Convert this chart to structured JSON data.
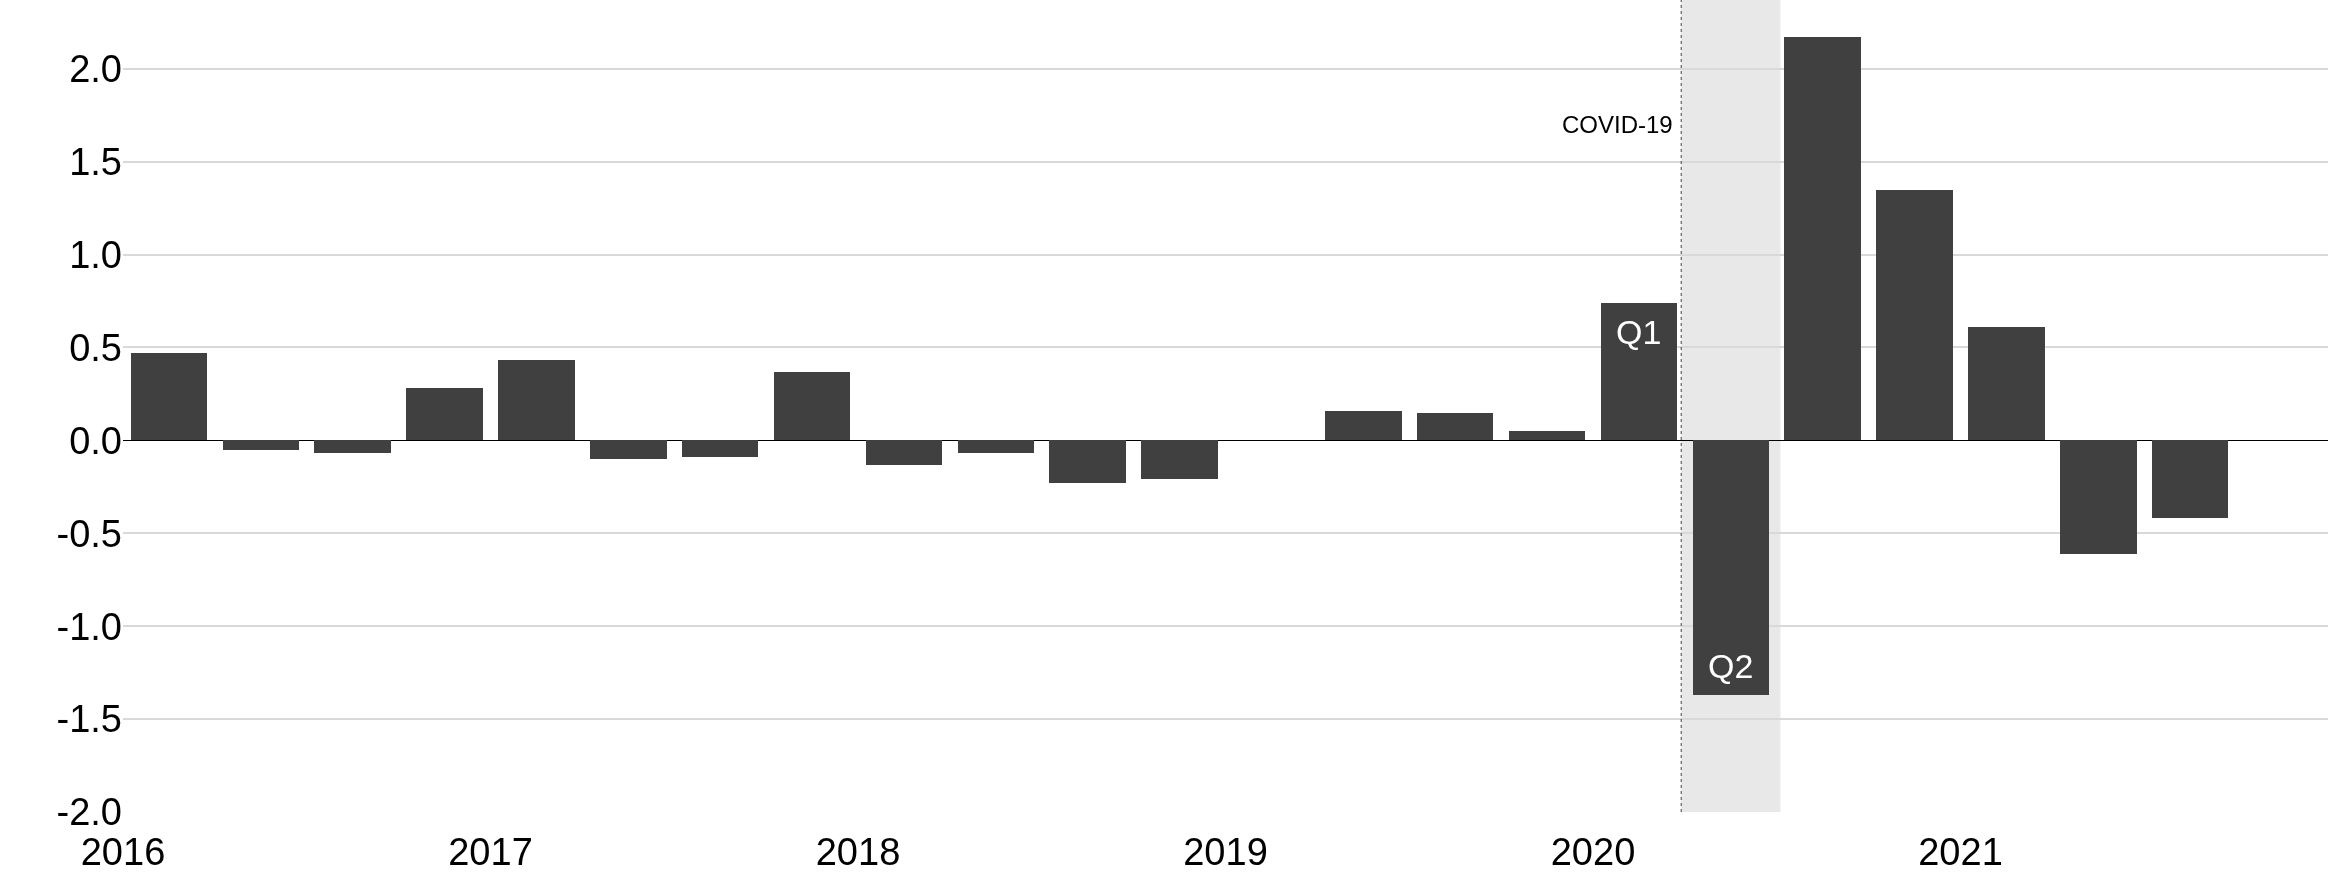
{
  "chart_data": {
    "type": "bar",
    "x": [
      2016.125,
      2016.375,
      2016.625,
      2016.875,
      2017.125,
      2017.375,
      2017.625,
      2017.875,
      2018.125,
      2018.375,
      2018.625,
      2018.875,
      2019.125,
      2019.375,
      2019.625,
      2019.875,
      2020.125,
      2020.375,
      2020.625,
      2020.875,
      2021.125,
      2021.375,
      2021.625
    ],
    "values": [
      0.47,
      -0.05,
      -0.07,
      0.28,
      0.43,
      -0.1,
      -0.09,
      0.37,
      -0.13,
      -0.07,
      -0.23,
      -0.21,
      null,
      0.16,
      0.15,
      0.05,
      0.74,
      -1.37,
      2.17,
      1.35,
      0.61,
      -0.61,
      -0.42
    ],
    "color": "#404040",
    "xlim": [
      2016,
      2022
    ],
    "xticks": [
      2016,
      2017,
      2018,
      2019,
      2020,
      2021
    ],
    "ylim": [
      -2.0,
      2.37
    ],
    "yticks": [
      {
        "value": -2.0,
        "label": "-2.0"
      },
      {
        "value": -1.5,
        "label": "-1.5"
      },
      {
        "value": -1.0,
        "label": "-1.0"
      },
      {
        "value": -0.5,
        "label": "-0.5"
      },
      {
        "value": 0.0,
        "label": "0.0"
      },
      {
        "value": 0.5,
        "label": "0.5"
      },
      {
        "value": 1.0,
        "label": "1.0"
      },
      {
        "value": 1.5,
        "label": "1.5"
      },
      {
        "value": 2.0,
        "label": "2.0"
      }
    ],
    "grid": "y",
    "ref_lines": [
      {
        "axis": "x",
        "value": 2020.24,
        "label": "COVID-19",
        "color": "#404040",
        "line_style": "dotted"
      }
    ],
    "bands": [
      {
        "axis": "x",
        "from": 2020.24,
        "to": 2020.51,
        "color": "#e8e8e8"
      }
    ],
    "annotations": [
      {
        "text": "Q1",
        "x": 2020.125,
        "y": 0.74
      },
      {
        "text": "Q2",
        "x": 2020.375,
        "y": -1.37
      }
    ]
  }
}
